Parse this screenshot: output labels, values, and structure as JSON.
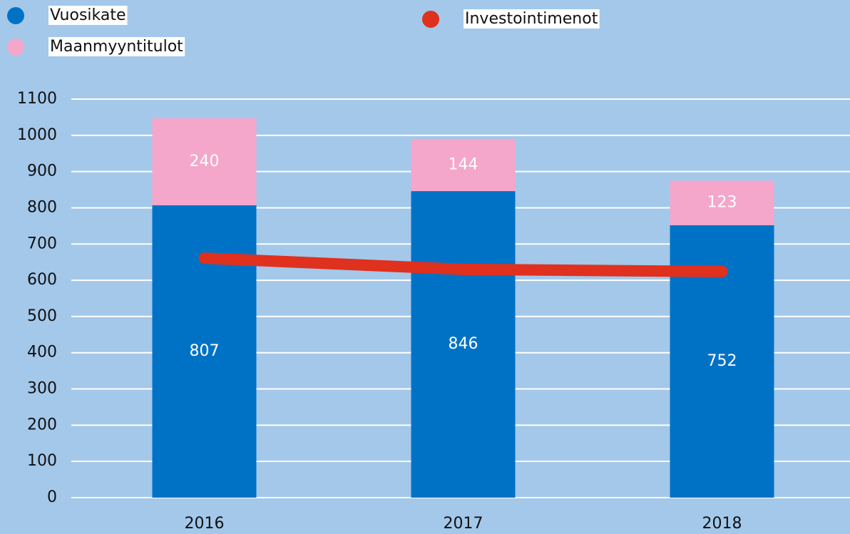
{
  "chart_data": {
    "type": "bar",
    "stacked": true,
    "categories": [
      "2016",
      "2017",
      "2018"
    ],
    "series": [
      {
        "name": "Vuosikate",
        "type": "bar",
        "color": "#0072c6",
        "values": [
          807,
          846,
          752
        ]
      },
      {
        "name": "Maanmyyntitulot",
        "type": "bar",
        "color": "#f5a6cb",
        "values": [
          240,
          144,
          123
        ]
      },
      {
        "name": "Investointimenot",
        "type": "line",
        "color": "#e0301e",
        "values": [
          661,
          630,
          624
        ]
      }
    ],
    "ylim": [
      0,
      1100
    ],
    "yticks": [
      0,
      100,
      200,
      300,
      400,
      500,
      600,
      700,
      800,
      900,
      1000,
      1100
    ],
    "grid": true
  }
}
